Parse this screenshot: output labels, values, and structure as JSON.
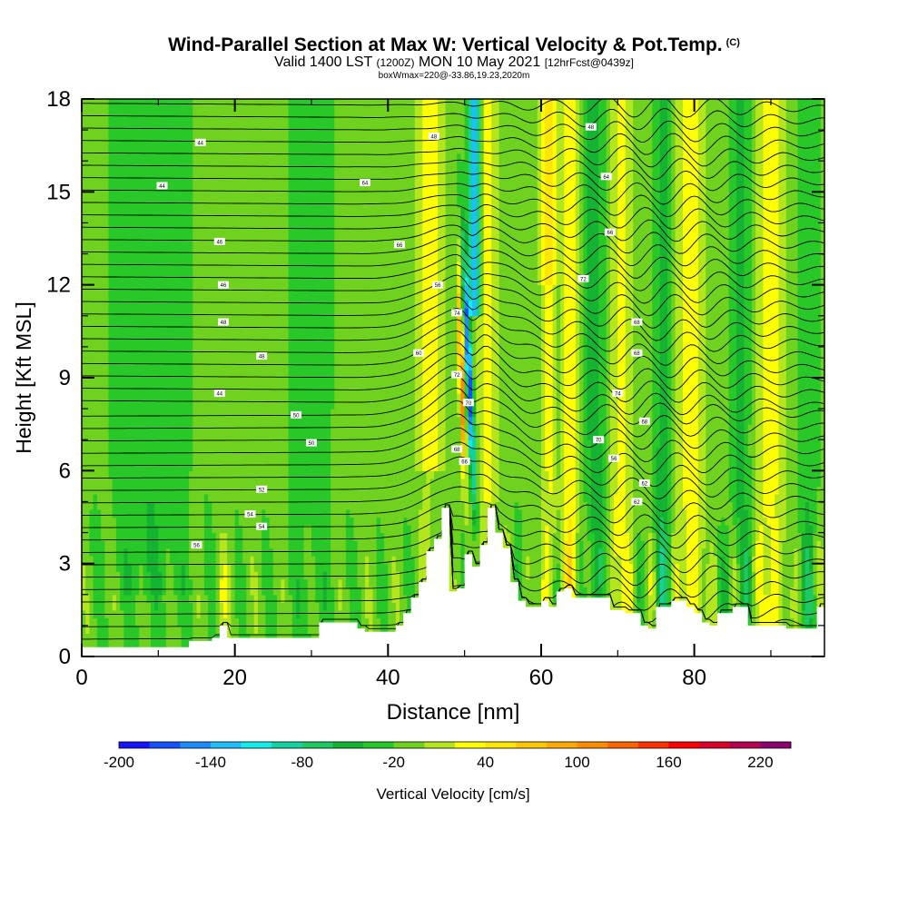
{
  "header": {
    "title": "Wind-Parallel Section at Max W: Vertical Velocity & Pot.Temp.",
    "copyright": "(C)",
    "valid_main1": "Valid 1400 LST",
    "valid_small1": "(1200Z)",
    "valid_main2": "MON 10 May 2021",
    "valid_small2": "[12hrFcst@0439z]",
    "box_info": "boxWmax=220@-33.86,19.23,2020m"
  },
  "chart_data": {
    "type": "heatmap",
    "xlabel": "Distance [nm]",
    "ylabel": "Height [Kft MSL]",
    "xlim": [
      0,
      97
    ],
    "ylim": [
      0,
      18
    ],
    "x_ticks": [
      0,
      20,
      40,
      60,
      80
    ],
    "y_ticks": [
      0,
      3,
      6,
      9,
      12,
      15,
      18
    ],
    "colorbar": {
      "label": "Vertical Velocity [cm/s]",
      "min": -200,
      "max": 240,
      "step": 20,
      "tick_values": [
        -200,
        -140,
        -80,
        -20,
        40,
        100,
        160,
        220
      ],
      "colors": [
        "#1414ff",
        "#1450ff",
        "#1e8cff",
        "#1ebeff",
        "#14ecec",
        "#14d2a0",
        "#1ec864",
        "#14b432",
        "#28c828",
        "#6ed21e",
        "#b4e61e",
        "#ffff00",
        "#ffe600",
        "#ffc800",
        "#ffaa00",
        "#ff8c00",
        "#ff6400",
        "#ff3200",
        "#ff0000",
        "#dc0028",
        "#b40050",
        "#8c006e"
      ]
    },
    "terrain_kft": [
      [
        0,
        0.3
      ],
      [
        13,
        0.3
      ],
      [
        14,
        0.5
      ],
      [
        17,
        0.6
      ],
      [
        18,
        1.0
      ],
      [
        19,
        0.6
      ],
      [
        30,
        0.6
      ],
      [
        31,
        1.1
      ],
      [
        35,
        1.1
      ],
      [
        36,
        0.9
      ],
      [
        37,
        0.8
      ],
      [
        40,
        0.8
      ],
      [
        41,
        1.0
      ],
      [
        42,
        1.4
      ],
      [
        43,
        1.9
      ],
      [
        44,
        2.4
      ],
      [
        45,
        3.4
      ],
      [
        46,
        3.8
      ],
      [
        47,
        4.8
      ],
      [
        48,
        2.1
      ],
      [
        49,
        2.2
      ],
      [
        50,
        3.3
      ],
      [
        51,
        2.9
      ],
      [
        52,
        3.6
      ],
      [
        53,
        4.8
      ],
      [
        54,
        4.0
      ],
      [
        55,
        3.5
      ],
      [
        56,
        2.4
      ],
      [
        57,
        1.8
      ],
      [
        58,
        1.6
      ],
      [
        59,
        1.6
      ],
      [
        60,
        1.8
      ],
      [
        61,
        1.6
      ],
      [
        62,
        2.1
      ],
      [
        63,
        2.2
      ],
      [
        64,
        1.9
      ],
      [
        68,
        1.9
      ],
      [
        69,
        1.5
      ],
      [
        71,
        1.4
      ],
      [
        73,
        1.0
      ],
      [
        74,
        0.9
      ],
      [
        75,
        1.6
      ],
      [
        77,
        1.8
      ],
      [
        79,
        1.6
      ],
      [
        80,
        1.4
      ],
      [
        81,
        1.1
      ],
      [
        82,
        1.0
      ],
      [
        83,
        1.4
      ],
      [
        85,
        1.6
      ],
      [
        87,
        1.0
      ],
      [
        91,
        1.0
      ],
      [
        92,
        0.9
      ],
      [
        95,
        0.9
      ],
      [
        96,
        1.6
      ],
      [
        97,
        1.6
      ]
    ],
    "theta_labels": [
      {
        "x": 15.5,
        "y": 16.6,
        "text": "44"
      },
      {
        "x": 10.5,
        "y": 15.2,
        "text": "44"
      },
      {
        "x": 18.0,
        "y": 13.4,
        "text": "46"
      },
      {
        "x": 18.5,
        "y": 12.0,
        "text": "46"
      },
      {
        "x": 18.5,
        "y": 10.8,
        "text": "48"
      },
      {
        "x": 23.5,
        "y": 9.7,
        "text": "48"
      },
      {
        "x": 18.0,
        "y": 8.5,
        "text": "44"
      },
      {
        "x": 28.0,
        "y": 7.8,
        "text": "50"
      },
      {
        "x": 30.0,
        "y": 6.9,
        "text": "50"
      },
      {
        "x": 23.5,
        "y": 5.4,
        "text": "52"
      },
      {
        "x": 22.0,
        "y": 4.6,
        "text": "54"
      },
      {
        "x": 23.5,
        "y": 4.2,
        "text": "54"
      },
      {
        "x": 15.0,
        "y": 3.6,
        "text": "56"
      },
      {
        "x": 46.0,
        "y": 16.8,
        "text": "48"
      },
      {
        "x": 37.0,
        "y": 15.3,
        "text": "64"
      },
      {
        "x": 41.5,
        "y": 13.3,
        "text": "66"
      },
      {
        "x": 46.5,
        "y": 12.0,
        "text": "56"
      },
      {
        "x": 44.0,
        "y": 9.8,
        "text": "60"
      },
      {
        "x": 49.0,
        "y": 11.1,
        "text": "74"
      },
      {
        "x": 49.0,
        "y": 9.1,
        "text": "72"
      },
      {
        "x": 50.5,
        "y": 8.2,
        "text": "70"
      },
      {
        "x": 49.0,
        "y": 6.7,
        "text": "68"
      },
      {
        "x": 50.0,
        "y": 6.3,
        "text": "66"
      },
      {
        "x": 66.5,
        "y": 17.1,
        "text": "48"
      },
      {
        "x": 68.5,
        "y": 15.5,
        "text": "64"
      },
      {
        "x": 69.0,
        "y": 13.7,
        "text": "66"
      },
      {
        "x": 65.5,
        "y": 12.2,
        "text": "72"
      },
      {
        "x": 72.5,
        "y": 10.8,
        "text": "68"
      },
      {
        "x": 72.5,
        "y": 9.8,
        "text": "68"
      },
      {
        "x": 70.0,
        "y": 8.5,
        "text": "74"
      },
      {
        "x": 73.5,
        "y": 7.6,
        "text": "68"
      },
      {
        "x": 67.5,
        "y": 7.0,
        "text": "70"
      },
      {
        "x": 69.5,
        "y": 6.4,
        "text": "56"
      },
      {
        "x": 73.5,
        "y": 5.6,
        "text": "62"
      },
      {
        "x": 72.5,
        "y": 5.0,
        "text": "62"
      }
    ]
  }
}
